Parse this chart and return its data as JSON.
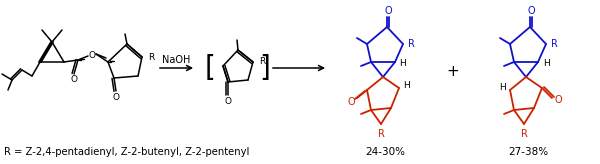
{
  "background_color": "#ffffff",
  "text_bottom_left": "R = Z-2,4-pentadienyl, Z-2-butenyl, Z-2-pentenyl",
  "yield_left": "24-30%",
  "yield_right": "27-38%",
  "text_color": "#000000",
  "red_color": "#cc2200",
  "blue_color": "#1111cc",
  "reagent_text": "NaOH",
  "fig_width": 6.0,
  "fig_height": 1.64,
  "dpi": 100
}
